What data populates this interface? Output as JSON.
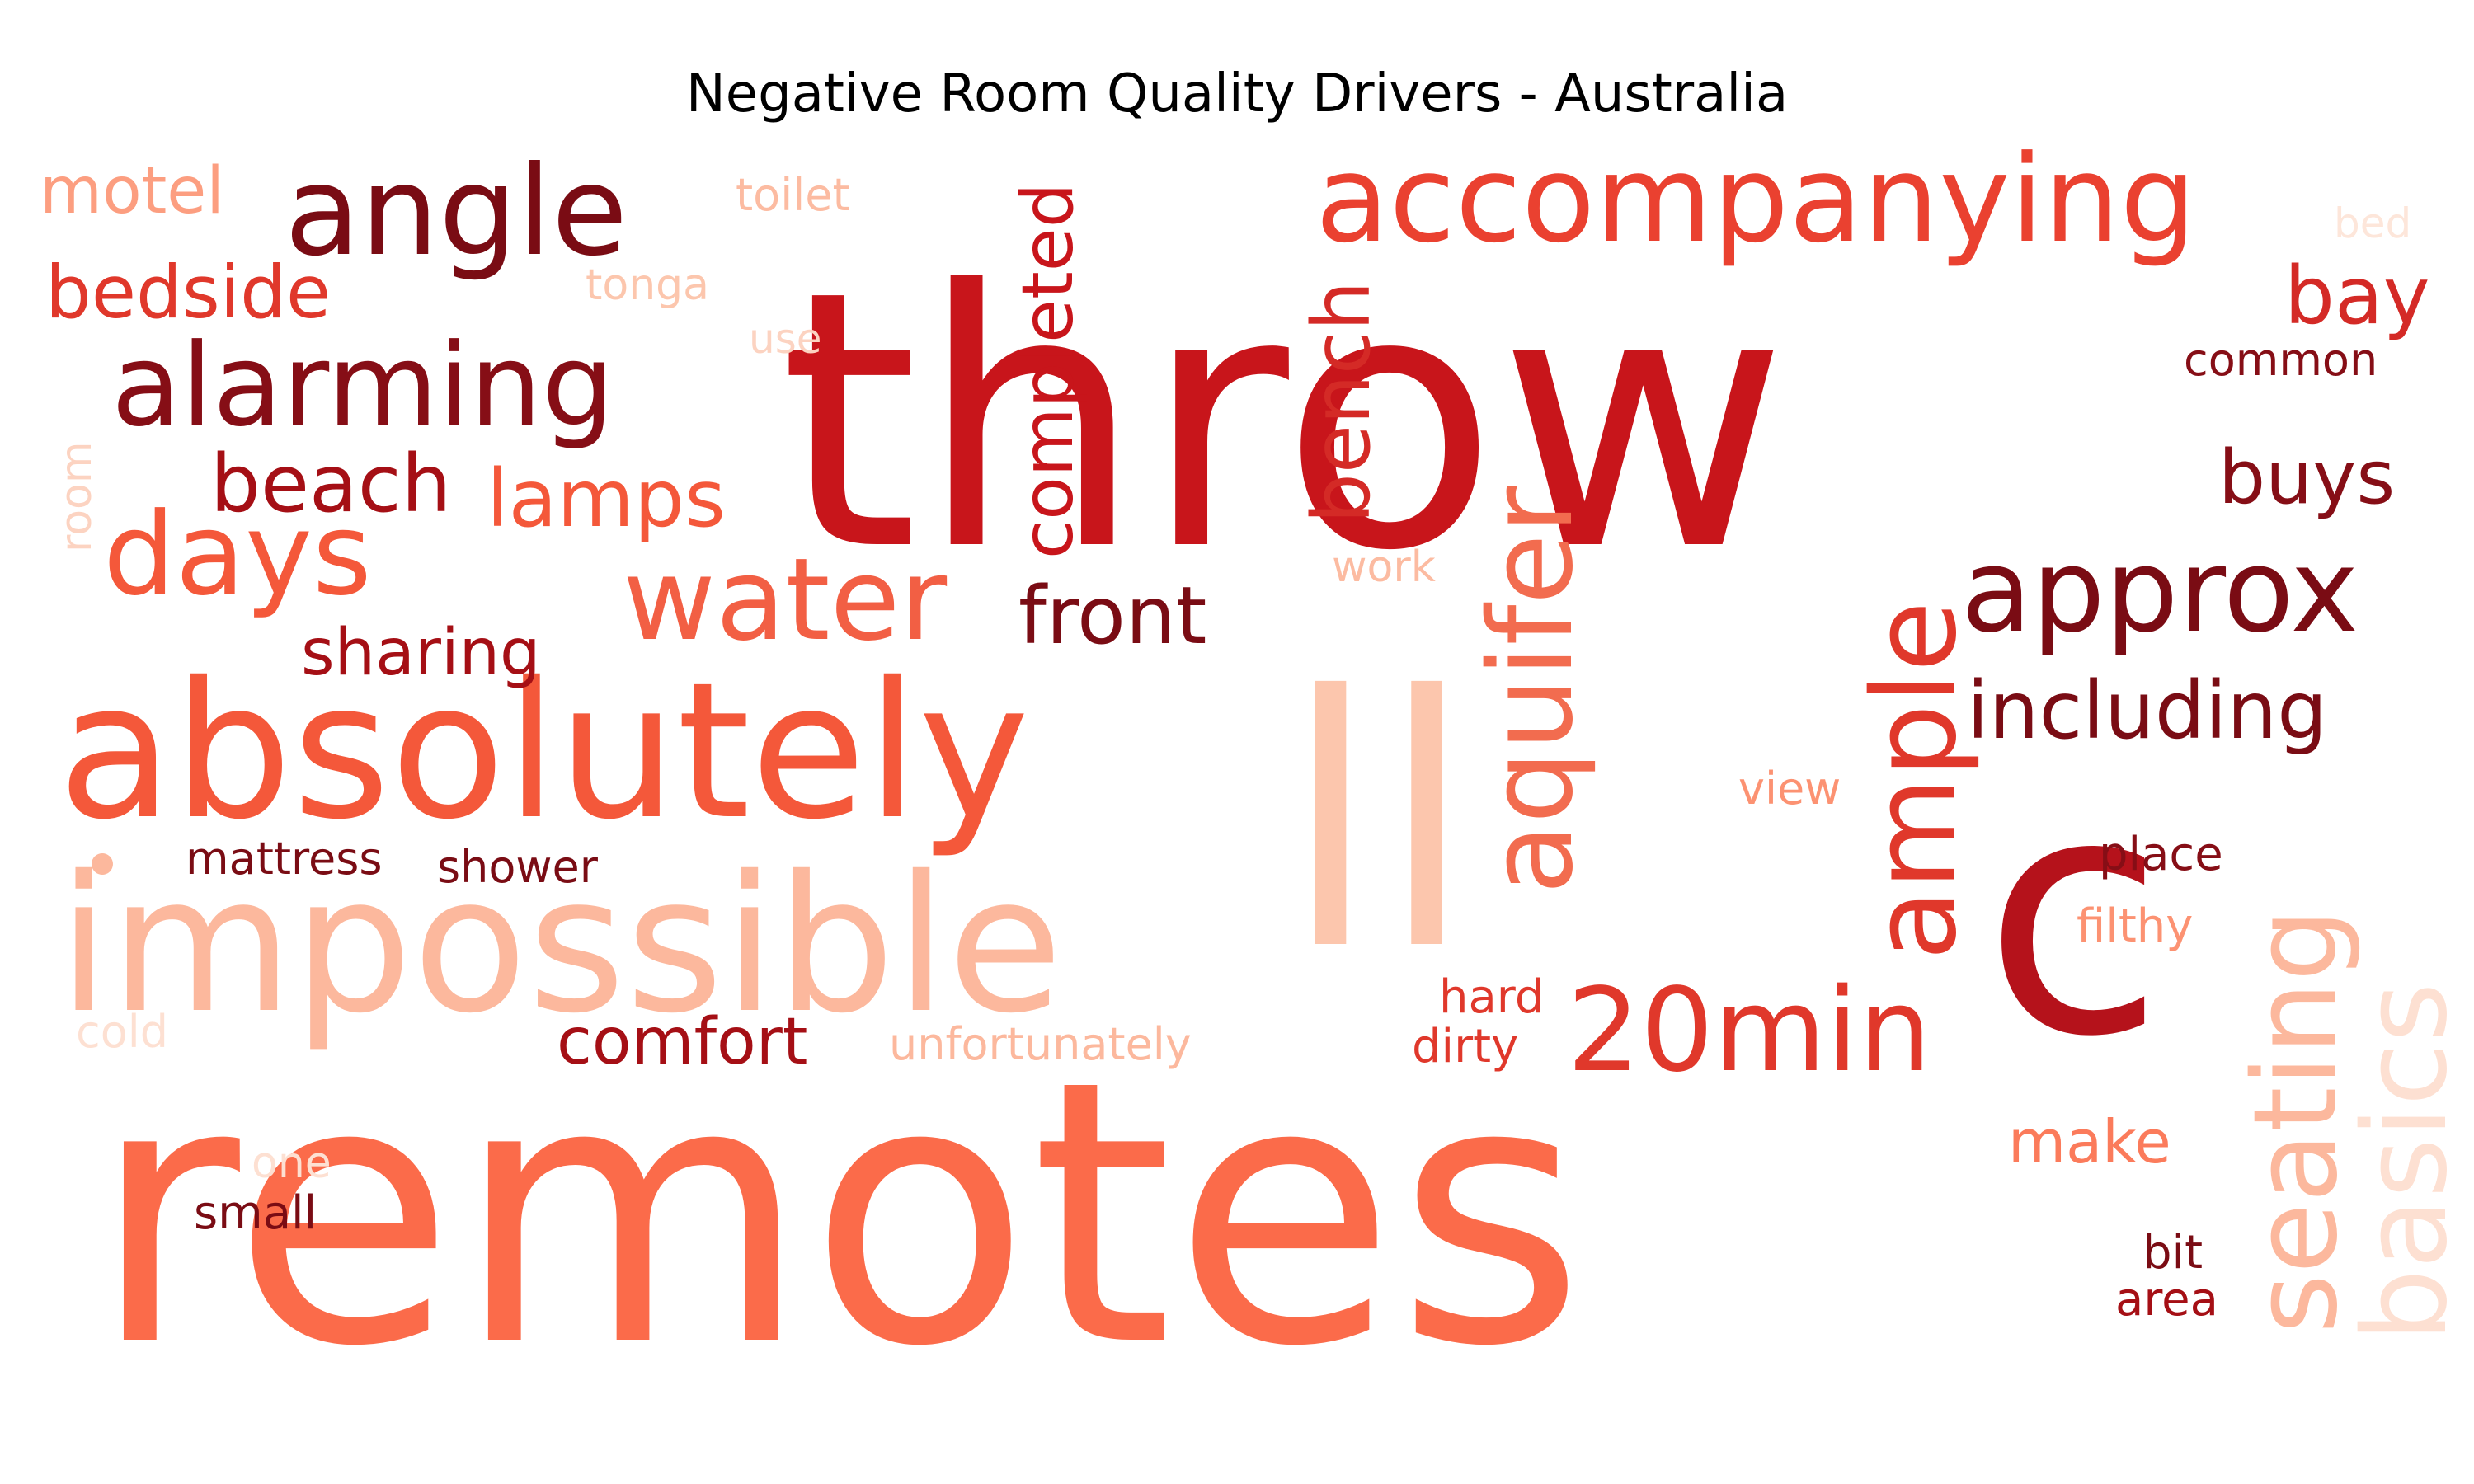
{
  "title": "Negative Room Quality Drivers - Australia",
  "palette": {
    "darkest": "#7a0c14",
    "dark": "#a50f15",
    "crimson": "#c8151b",
    "red": "#e0382b",
    "coral": "#f4583a",
    "salmon": "#fb6b4a",
    "light_salmon": "#fc9272",
    "peach": "#fcbba1",
    "pale": "#fde0d2"
  },
  "words": [
    {
      "id": "throw",
      "text": "throw",
      "color": "#c8151b"
    },
    {
      "id": "remotes",
      "text": "remotes",
      "color": "#fb6b4a"
    },
    {
      "id": "ll",
      "text": "ll",
      "color": "#fcc6ad"
    },
    {
      "id": "c",
      "text": "c",
      "color": "#b5121b"
    },
    {
      "id": "impossible",
      "text": "impossible",
      "color": "#fcb89d"
    },
    {
      "id": "absolutely",
      "text": "absolutely",
      "color": "#f4583a"
    },
    {
      "id": "accompanying",
      "text": "accompanying",
      "color": "#ea4130"
    },
    {
      "id": "angle",
      "text": "angle",
      "color": "#7a0c14"
    },
    {
      "id": "alarming",
      "text": "alarming",
      "color": "#860e16"
    },
    {
      "id": "days",
      "text": "days",
      "color": "#f4583a"
    },
    {
      "id": "water",
      "text": "water",
      "color": "#f25f44"
    },
    {
      "id": "aquifer",
      "text": "aquifer",
      "color": "#f26c4f"
    },
    {
      "id": "approx",
      "text": "approx",
      "color": "#7a0c14"
    },
    {
      "id": "20min",
      "text": "20min",
      "color": "#e0382b"
    },
    {
      "id": "ample",
      "text": "ample",
      "color": "#e0382b"
    },
    {
      "id": "seating",
      "text": "seating",
      "color": "#fcb89d"
    },
    {
      "id": "basics",
      "text": "basics",
      "color": "#fde0d2"
    },
    {
      "id": "bench",
      "text": "bench",
      "color": "#d42a26"
    },
    {
      "id": "completed",
      "text": "completed",
      "color": "#c8151b"
    },
    {
      "id": "bedside",
      "text": "bedside",
      "color": "#e0382b"
    },
    {
      "id": "beach",
      "text": "beach",
      "color": "#a50f15"
    },
    {
      "id": "lamps",
      "text": "lamps",
      "color": "#f4583a"
    },
    {
      "id": "front",
      "text": "front",
      "color": "#7a0c14"
    },
    {
      "id": "including",
      "text": "including",
      "color": "#7a0c14"
    },
    {
      "id": "bay",
      "text": "bay",
      "color": "#d42a26"
    },
    {
      "id": "buys",
      "text": "buys",
      "color": "#860e16"
    },
    {
      "id": "sharing",
      "text": "sharing",
      "color": "#a50f15"
    },
    {
      "id": "motel",
      "text": "motel",
      "color": "#fc9e80"
    },
    {
      "id": "comfort",
      "text": "comfort",
      "color": "#a50f15"
    },
    {
      "id": "make",
      "text": "make",
      "color": "#fb7b5b"
    },
    {
      "id": "toilet",
      "text": "toilet",
      "color": "#fcbba1"
    },
    {
      "id": "tonga",
      "text": "tonga",
      "color": "#fcc6ad"
    },
    {
      "id": "use",
      "text": "use",
      "color": "#fcd3c1"
    },
    {
      "id": "room",
      "text": "room",
      "color": "#fcd3c1"
    },
    {
      "id": "common",
      "text": "common",
      "color": "#860e16"
    },
    {
      "id": "bed",
      "text": "bed",
      "color": "#fde6da"
    },
    {
      "id": "work",
      "text": "work",
      "color": "#fcbba1"
    },
    {
      "id": "view",
      "text": "view",
      "color": "#fc9272"
    },
    {
      "id": "place",
      "text": "place",
      "color": "#860e16"
    },
    {
      "id": "filthy",
      "text": "filthy",
      "color": "#fc9272"
    },
    {
      "id": "mattress",
      "text": "mattress",
      "color": "#7a0c14"
    },
    {
      "id": "shower",
      "text": "shower",
      "color": "#7a0c14"
    },
    {
      "id": "hard",
      "text": "hard",
      "color": "#e0382b"
    },
    {
      "id": "dirty",
      "text": "dirty",
      "color": "#e0382b"
    },
    {
      "id": "unfortunately",
      "text": "unfortunately",
      "color": "#fcb89d"
    },
    {
      "id": "cold",
      "text": "cold",
      "color": "#fde0d2"
    },
    {
      "id": "one",
      "text": "one",
      "color": "#fde0d2"
    },
    {
      "id": "small",
      "text": "small",
      "color": "#7a0c14"
    },
    {
      "id": "bit",
      "text": "bit",
      "color": "#7a0c14"
    },
    {
      "id": "area",
      "text": "area",
      "color": "#a50f15"
    }
  ]
}
